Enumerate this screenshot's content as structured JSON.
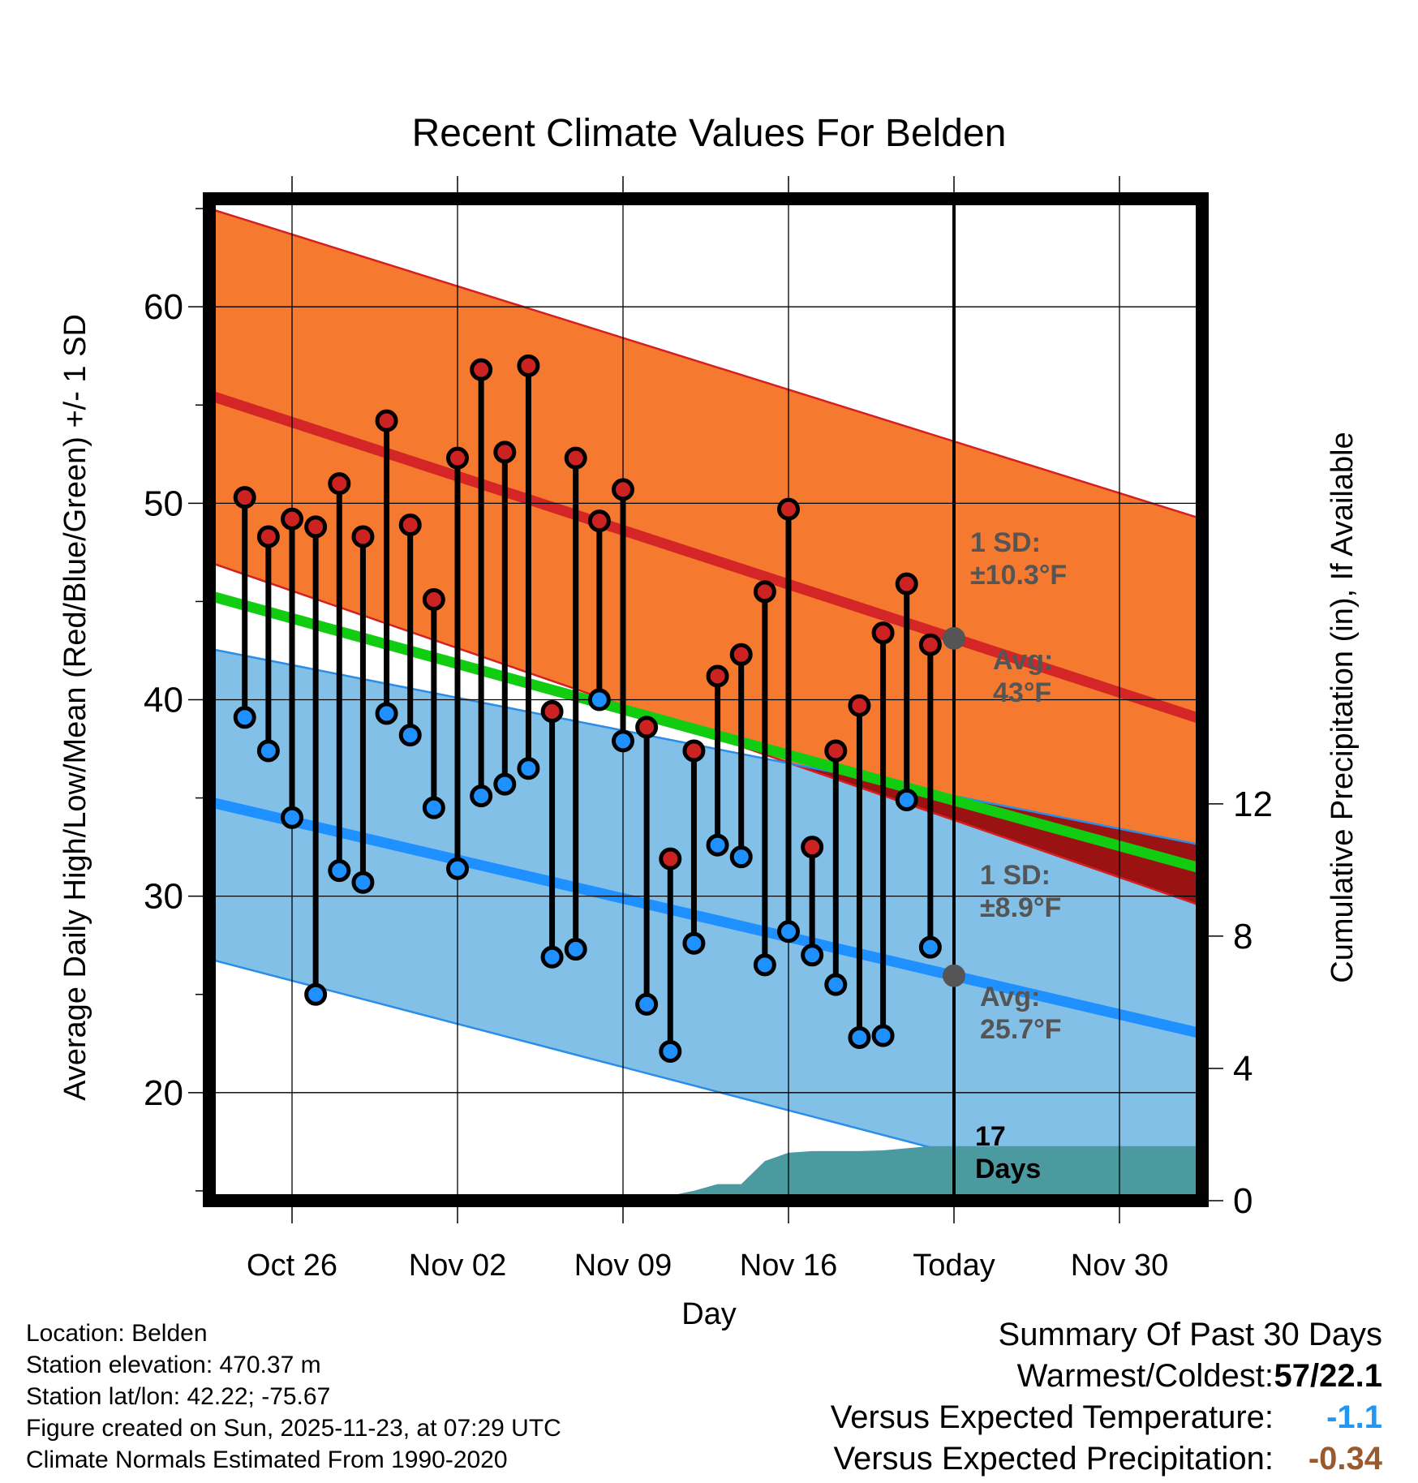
{
  "chart_data": {
    "type": "line",
    "title": "Recent Climate Values For Belden",
    "xlabel": "Day",
    "ylabel_left": "Average Daily High/Low/Mean (Red/Blue/Green) +/- 1 SD",
    "ylabel_right": "Cumulative Precipitation (in), If Available",
    "ylim_left": [
      14.5,
      65.5
    ],
    "ylim_right": [
      0,
      30.3
    ],
    "xlim": [
      -3.5,
      38.5
    ],
    "x_ticks": [
      {
        "x": 0,
        "label": "Oct 26"
      },
      {
        "x": 7,
        "label": "Nov 02"
      },
      {
        "x": 14,
        "label": "Nov 09"
      },
      {
        "x": 21,
        "label": "Nov 16"
      },
      {
        "x": 28,
        "label": "Today"
      },
      {
        "x": 35,
        "label": "Nov 30"
      }
    ],
    "y_ticks_left": [
      20,
      30,
      40,
      50,
      60
    ],
    "y_ticks_right": [
      0,
      4,
      8,
      12
    ],
    "today_x": 28,
    "normals": {
      "high_avg": {
        "start": 55.5,
        "end": 39.0
      },
      "high_sd_upper": {
        "start": 65.0,
        "end": 49.2
      },
      "high_sd_lower": {
        "start": 47.0,
        "end": 29.5
      },
      "low_avg": {
        "start": 34.8,
        "end": 23.0
      },
      "low_sd_upper": {
        "start": 42.6,
        "end": 32.6
      },
      "low_sd_lower": {
        "start": 26.8,
        "end": 13.6
      },
      "mean_avg": {
        "start": 45.3,
        "end": 31.4
      }
    },
    "series": [
      {
        "name": "Daily High",
        "color": "#cc2222",
        "x": [
          -2,
          -1,
          0,
          1,
          2,
          3,
          4,
          5,
          6,
          7,
          8,
          9,
          10,
          11,
          12,
          13,
          14,
          15,
          16,
          17,
          18,
          19,
          20,
          21,
          22,
          23,
          24,
          25,
          26,
          27
        ],
        "values": [
          50.3,
          48.3,
          49.2,
          48.8,
          51.0,
          48.3,
          54.2,
          48.9,
          45.1,
          52.3,
          56.8,
          52.6,
          57.0,
          39.4,
          52.3,
          49.1,
          50.7,
          38.6,
          31.9,
          37.4,
          41.2,
          42.3,
          45.5,
          49.7,
          32.5,
          37.4,
          39.7,
          43.4,
          45.9,
          42.8
        ]
      },
      {
        "name": "Daily Low",
        "color": "#1e90ff",
        "x": [
          -2,
          -1,
          0,
          1,
          2,
          3,
          4,
          5,
          6,
          7,
          8,
          9,
          10,
          11,
          12,
          13,
          14,
          15,
          16,
          17,
          18,
          19,
          20,
          21,
          22,
          23,
          24,
          25,
          26,
          27
        ],
        "values": [
          39.1,
          37.4,
          34.0,
          25.0,
          31.3,
          30.7,
          39.3,
          38.2,
          34.5,
          31.4,
          35.1,
          35.7,
          36.5,
          26.9,
          27.3,
          40.0,
          37.9,
          24.5,
          22.1,
          27.6,
          32.6,
          32.0,
          26.5,
          28.2,
          27.0,
          25.5,
          22.8,
          22.9,
          34.9,
          27.4
        ]
      },
      {
        "name": "Cumulative Precipitation",
        "color": "#4a9aa0",
        "x": [
          14,
          16,
          17,
          18,
          19,
          20,
          21,
          22,
          24,
          25,
          27,
          38.5
        ],
        "values": [
          0,
          0.15,
          0.3,
          0.5,
          0.5,
          1.2,
          1.45,
          1.5,
          1.5,
          1.52,
          1.65,
          1.65
        ]
      }
    ],
    "annotations": [
      {
        "line1": "1 SD:",
        "line2": "±10.3°F"
      },
      {
        "line1": "Avg:",
        "line2": "43°F"
      },
      {
        "line1": "1 SD:",
        "line2": "±8.9°F"
      },
      {
        "line1": "Avg:",
        "line2": "25.7°F"
      },
      {
        "line1": "17",
        "line2": "Days"
      }
    ]
  },
  "info": {
    "location": "Location: Belden",
    "elevation": "Station elevation: 470.37 m",
    "latlon": "Station lat/lon: 42.22; -75.67",
    "created": "Figure created on Sun, 2025-11-23, at 07:29 UTC",
    "normals": "Climate Normals Estimated From 1990-2020"
  },
  "summary": {
    "title": "Summary Of Past 30 Days",
    "warmest_label": "Warmest/Coldest:",
    "warmest_value": "57/22.1",
    "temp_label": "Versus Expected Temperature:",
    "temp_value": "-1.1",
    "precip_label": "Versus Expected Precipitation:",
    "precip_value": "-0.34",
    "colors": {
      "warmest": "#000000",
      "temp": "#2196f3",
      "precip": "#9a5a2e"
    }
  }
}
